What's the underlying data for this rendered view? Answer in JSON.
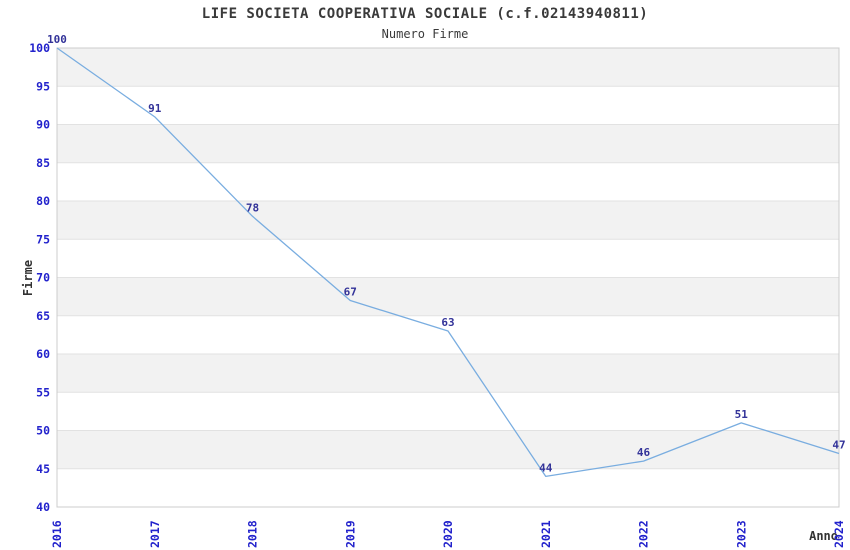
{
  "title": "LIFE SOCIETA COOPERATIVA SOCIALE (c.f.02143940811)",
  "subtitle": "Numero Firme",
  "chart_data": {
    "type": "line",
    "title": "LIFE SOCIETA COOPERATIVA SOCIALE (c.f.02143940811)",
    "subtitle": "Numero Firme",
    "categories": [
      "2016",
      "2017",
      "2018",
      "2019",
      "2020",
      "2021",
      "2022",
      "2023",
      "2024"
    ],
    "series": [
      {
        "name": "Numero Firme",
        "values": [
          100,
          91,
          78,
          67,
          63,
          44,
          46,
          51,
          47
        ]
      }
    ],
    "xlabel": "Anno",
    "ylabel": "Firme",
    "ylim": [
      40,
      100
    ],
    "ytick_step": 5,
    "grid": true,
    "alternating_bands": true,
    "legend_position": "none",
    "data_labels_visible": true,
    "colors": {
      "line": "#79ade0",
      "tick_label": "#2222cc",
      "data_label": "#333399",
      "band": "#f2f2f2",
      "gridline": "#e2e2e2",
      "border": "#cccccc",
      "text": "#333333",
      "background": "#ffffff"
    }
  }
}
